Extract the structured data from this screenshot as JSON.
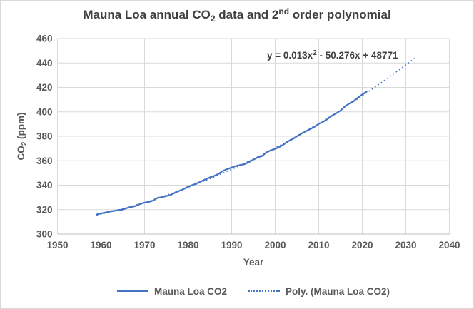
{
  "title": {
    "p1": "Mauna Loa annual CO",
    "sub": "2",
    "p2": " data and 2",
    "sup": "nd",
    "p3": " order polynomial"
  },
  "equation": {
    "p1": "y = 0.013x",
    "sup": "2",
    "p2": " - 50.276x + 48771"
  },
  "axes": {
    "y_title": {
      "p1": "CO",
      "sub": "2",
      "p2": " (ppm)"
    },
    "x_title": "Year"
  },
  "legend": [
    {
      "label": "Mauna Loa CO2",
      "style": "solid"
    },
    {
      "label": "Poly. (Mauna Loa CO2)",
      "style": "dotted"
    }
  ],
  "colors": {
    "series": "#4472c4",
    "grid": "#d9d9d9",
    "axis": "#bfbfbf",
    "title_text": "#404040",
    "tick_text": "#595959",
    "border": "#d9d9d9"
  },
  "chart_data": {
    "type": "line",
    "title": "Mauna Loa annual CO2 data and 2nd order polynomial",
    "xlabel": "Year",
    "ylabel": "CO2 (ppm)",
    "xlim": [
      1950,
      2040
    ],
    "ylim": [
      300,
      460
    ],
    "xticks": [
      1950,
      1960,
      1970,
      1980,
      1990,
      2000,
      2010,
      2020,
      2030,
      2040
    ],
    "yticks": [
      300,
      320,
      340,
      360,
      380,
      400,
      420,
      440,
      460
    ],
    "grid": true,
    "legend_position": "bottom",
    "series": [
      {
        "name": "Mauna Loa CO2",
        "x": [
          1959,
          1960,
          1961,
          1962,
          1963,
          1964,
          1965,
          1966,
          1967,
          1968,
          1969,
          1970,
          1971,
          1972,
          1973,
          1974,
          1975,
          1976,
          1977,
          1978,
          1979,
          1980,
          1981,
          1982,
          1983,
          1984,
          1985,
          1986,
          1987,
          1988,
          1989,
          1990,
          1991,
          1992,
          1993,
          1994,
          1995,
          1996,
          1997,
          1998,
          1999,
          2000,
          2001,
          2002,
          2003,
          2004,
          2005,
          2006,
          2007,
          2008,
          2009,
          2010,
          2011,
          2012,
          2013,
          2014,
          2015,
          2016,
          2017,
          2018,
          2019,
          2020,
          2021
        ],
        "y": [
          315.98,
          316.91,
          317.64,
          318.45,
          318.99,
          319.62,
          320.04,
          321.37,
          322.18,
          323.05,
          324.62,
          325.68,
          326.32,
          327.46,
          329.68,
          330.19,
          331.12,
          332.03,
          333.84,
          335.41,
          336.84,
          338.76,
          340.12,
          341.48,
          343.15,
          344.87,
          346.35,
          347.61,
          349.31,
          351.69,
          353.2,
          354.45,
          355.7,
          356.54,
          357.21,
          358.96,
          360.97,
          362.74,
          363.88,
          366.84,
          368.54,
          369.71,
          371.32,
          373.45,
          375.98,
          377.7,
          379.98,
          382.09,
          384.02,
          385.83,
          387.64,
          390.1,
          391.85,
          394.06,
          396.74,
          398.81,
          401.01,
          404.41,
          406.76,
          408.72,
          411.65,
          414.21,
          416.41
        ]
      }
    ],
    "trendline": {
      "name": "Poly. (Mauna Loa CO2)",
      "type": "polynomial",
      "order": 2,
      "equation_label": "y = 0.013x2 - 50.276x + 48771",
      "extends_to_year": 2032
    }
  }
}
